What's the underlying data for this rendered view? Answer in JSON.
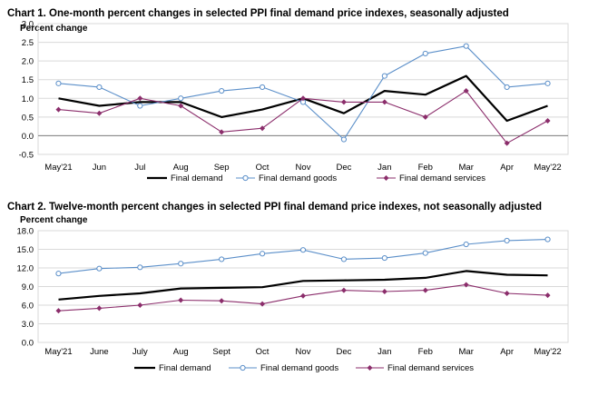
{
  "colors": {
    "final_demand": "#000000",
    "final_demand_goods": "#5b8fc9",
    "final_demand_services": "#8b2d6b",
    "gridline": "#d9d9d9",
    "axis": "#808080"
  },
  "chart_data": [
    {
      "type": "line",
      "title": "Chart 1. One-month percent changes in selected PPI final demand price indexes, seasonally adjusted",
      "ylabel": "Percent change",
      "xlabel": "",
      "ylim": [
        -0.5,
        3.0
      ],
      "yticks": [
        -0.5,
        0.0,
        0.5,
        1.0,
        1.5,
        2.0,
        2.5,
        3.0
      ],
      "ytick_labels": [
        "-0.5",
        "0.0",
        "0.5",
        "1.0",
        "1.5",
        "2.0",
        "2.5",
        "3.0"
      ],
      "categories": [
        "May'21",
        "Jun",
        "Jul",
        "Aug",
        "Sep",
        "Oct",
        "Nov",
        "Dec",
        "Jan",
        "Feb",
        "Mar",
        "Apr",
        "May'22"
      ],
      "series": [
        {
          "name": "Final demand",
          "key": "final_demand",
          "values": [
            1.0,
            0.8,
            0.9,
            0.9,
            0.5,
            0.7,
            1.0,
            0.6,
            1.2,
            1.1,
            1.6,
            0.4,
            0.8
          ]
        },
        {
          "name": "Final demand goods",
          "key": "final_demand_goods",
          "values": [
            1.4,
            1.3,
            0.8,
            1.0,
            1.2,
            1.3,
            0.9,
            -0.1,
            1.6,
            2.2,
            2.4,
            1.3,
            1.4
          ]
        },
        {
          "name": "Final demand services",
          "key": "final_demand_services",
          "values": [
            0.7,
            0.6,
            1.0,
            0.8,
            0.1,
            0.2,
            1.0,
            0.9,
            0.9,
            0.5,
            1.2,
            -0.2,
            0.4
          ]
        }
      ],
      "grid": true,
      "legend_position": "bottom"
    },
    {
      "type": "line",
      "title": "Chart 2. Twelve-month percent changes in selected PPI final demand price indexes, not seasonally adjusted",
      "ylabel": "Percent change",
      "xlabel": "",
      "ylim": [
        0.0,
        18.0
      ],
      "yticks": [
        0.0,
        3.0,
        6.0,
        9.0,
        12.0,
        15.0,
        18.0
      ],
      "ytick_labels": [
        "0.0",
        "3.0",
        "6.0",
        "9.0",
        "12.0",
        "15.0",
        "18.0"
      ],
      "categories": [
        "May'21",
        "June",
        "July",
        "Aug",
        "Sept",
        "Oct",
        "Nov",
        "Dec",
        "Jan",
        "Feb",
        "Mar",
        "Apr",
        "May'22"
      ],
      "series": [
        {
          "name": "Final demand",
          "key": "final_demand",
          "values": [
            6.9,
            7.5,
            7.9,
            8.7,
            8.8,
            8.9,
            9.9,
            10.0,
            10.1,
            10.4,
            11.5,
            10.9,
            10.8
          ]
        },
        {
          "name": "Final demand goods",
          "key": "final_demand_goods",
          "values": [
            11.1,
            11.9,
            12.1,
            12.7,
            13.4,
            14.3,
            14.9,
            13.4,
            13.6,
            14.4,
            15.8,
            16.4,
            16.6
          ]
        },
        {
          "name": "Final demand services",
          "key": "final_demand_services",
          "values": [
            5.1,
            5.5,
            6.0,
            6.8,
            6.7,
            6.2,
            7.5,
            8.4,
            8.2,
            8.4,
            9.3,
            7.9,
            7.6
          ]
        }
      ],
      "grid": true,
      "legend_position": "bottom"
    }
  ]
}
